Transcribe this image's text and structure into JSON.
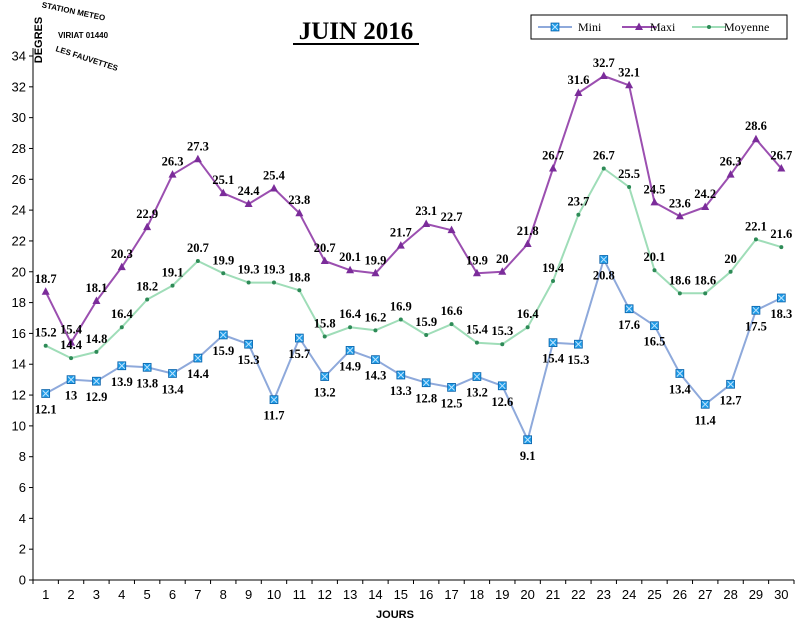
{
  "chart_data": {
    "type": "line",
    "title": "JUIN 2016",
    "xlabel": "JOURS",
    "ylabel": "DEGRES",
    "ylim": [
      0,
      34
    ],
    "yticks": [
      0,
      2,
      4,
      6,
      8,
      10,
      12,
      14,
      16,
      18,
      20,
      22,
      24,
      26,
      28,
      30,
      32,
      34
    ],
    "categories": [
      "1",
      "2",
      "3",
      "4",
      "5",
      "6",
      "7",
      "8",
      "9",
      "10",
      "11",
      "12",
      "13",
      "14",
      "15",
      "16",
      "17",
      "18",
      "19",
      "20",
      "21",
      "22",
      "23",
      "24",
      "25",
      "26",
      "27",
      "28",
      "29",
      "30"
    ],
    "legend_position": "top-right",
    "grid": false,
    "series": [
      {
        "name": "Mini",
        "color": "#8EA9DB",
        "marker": "square",
        "marker_color": "#1E9BE6",
        "values": [
          12.1,
          13,
          12.9,
          13.9,
          13.8,
          13.4,
          14.4,
          15.9,
          15.3,
          11.7,
          15.7,
          13.2,
          14.9,
          14.3,
          13.3,
          12.8,
          12.5,
          13.2,
          12.6,
          9.1,
          15.4,
          15.3,
          20.8,
          17.6,
          16.5,
          13.4,
          11.4,
          12.7,
          17.5,
          18.3
        ]
      },
      {
        "name": "Maxi",
        "color": "#9B4FB0",
        "marker": "triangle",
        "marker_color": "#7B2C9A",
        "values": [
          18.7,
          15.4,
          18.1,
          20.3,
          22.9,
          26.3,
          27.3,
          25.1,
          24.4,
          25.4,
          23.8,
          20.7,
          20.1,
          19.9,
          21.7,
          23.1,
          22.7,
          19.9,
          20,
          21.8,
          26.7,
          31.6,
          32.7,
          32.1,
          24.5,
          23.6,
          24.2,
          26.3,
          28.6,
          26.7
        ]
      },
      {
        "name": "Moyenne",
        "color": "#9FDDB8",
        "marker": "dot",
        "marker_color": "#2E8B57",
        "values": [
          15.2,
          14.4,
          14.8,
          16.4,
          18.2,
          19.1,
          20.7,
          19.9,
          19.3,
          19.3,
          18.8,
          15.8,
          16.4,
          16.2,
          16.9,
          15.9,
          16.6,
          15.4,
          15.3,
          16.4,
          19.4,
          23.7,
          26.7,
          25.5,
          20.1,
          18.6,
          18.6,
          20,
          22.1,
          21.6
        ]
      }
    ],
    "stamp": {
      "top": "STATION METEO",
      "middle": "VIRIAT 01440",
      "bottom": "LES FAUVETTES"
    }
  }
}
